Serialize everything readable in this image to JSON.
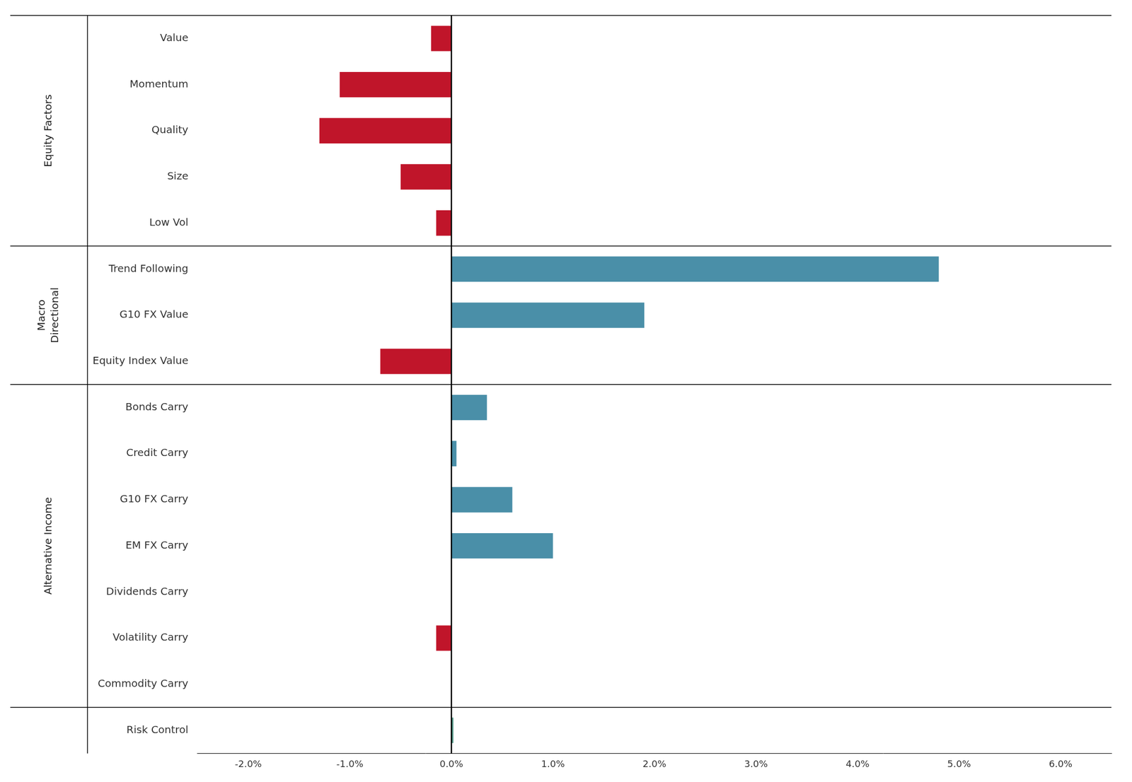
{
  "chart_data": {
    "type": "bar",
    "orientation": "horizontal",
    "categories": [
      "Value",
      "Momentum",
      "Quality",
      "Size",
      "Low Vol",
      "Trend Following",
      "G10 FX Value",
      "Equity Index Value",
      "Bonds Carry",
      "Credit Carry",
      "G10 FX Carry",
      "EM FX Carry",
      "Dividends Carry",
      "Volatility Carry",
      "Commodity Carry",
      "Risk Control"
    ],
    "values": [
      -0.2,
      -1.1,
      -1.3,
      -0.5,
      -0.15,
      4.8,
      1.9,
      -0.7,
      0.35,
      0.05,
      0.6,
      1.0,
      0.0,
      -0.15,
      0.0,
      0.02
    ],
    "colors": [
      "#c0152a",
      "#c0152a",
      "#c0152a",
      "#c0152a",
      "#c0152a",
      "#4a8fa8",
      "#4a8fa8",
      "#c0152a",
      "#4a8fa8",
      "#4a8fa8",
      "#4a8fa8",
      "#4a8fa8",
      "#4a8fa8",
      "#c0152a",
      "#4a8fa8",
      "#5a9e8e"
    ],
    "xlim": [
      -2.5,
      6.5
    ],
    "xticks": [
      {
        "value": -2.0,
        "label": "-2.0%"
      },
      {
        "value": -1.0,
        "label": "-1.0%"
      },
      {
        "value": 0.0,
        "label": "0.0%"
      },
      {
        "value": 1.0,
        "label": "1.0%"
      },
      {
        "value": 2.0,
        "label": "2.0%"
      },
      {
        "value": 3.0,
        "label": "3.0%"
      },
      {
        "value": 4.0,
        "label": "4.0%"
      },
      {
        "value": 5.0,
        "label": "5.0%"
      },
      {
        "value": 6.0,
        "label": "6.0%"
      }
    ],
    "grid": false,
    "annotations": [
      {
        "text": "Equity Factors",
        "categories": [
          "Value",
          "Momentum",
          "Quality",
          "Size",
          "Low Vol"
        ]
      },
      {
        "text": "Macro\nDirectional",
        "categories": [
          "Trend Following",
          "G10 FX Value",
          "Equity Index Value"
        ]
      },
      {
        "text": "Alternative Income",
        "categories": [
          "Bonds Carry",
          "Credit Carry",
          "G10 FX Carry",
          "EM FX Carry",
          "Dividends Carry",
          "Volatility Carry",
          "Commodity Carry"
        ]
      }
    ]
  }
}
